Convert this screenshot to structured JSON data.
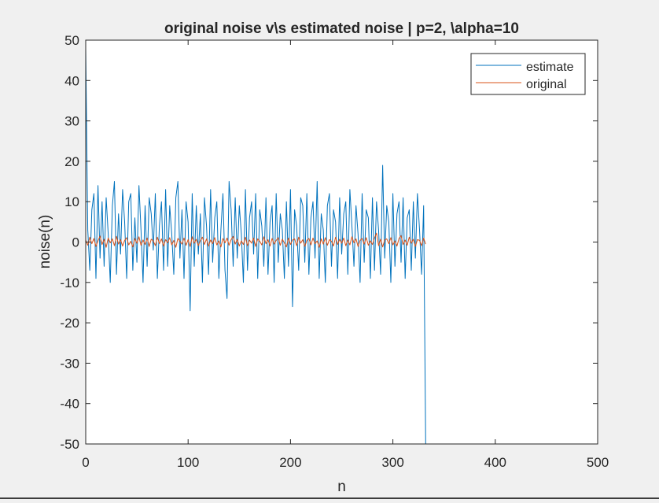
{
  "chart_data": {
    "type": "line",
    "title": "original noise v\\s estimated noise | p=2, \\alpha=10",
    "xlabel": "n",
    "ylabel": "noise(n)",
    "xlim": [
      0,
      500
    ],
    "ylim": [
      -50,
      50
    ],
    "xticks": [
      0,
      100,
      200,
      300,
      400,
      500
    ],
    "yticks": [
      50,
      40,
      30,
      20,
      10,
      0,
      -10,
      -20,
      -30,
      -40,
      -50
    ],
    "grid": false,
    "legend_position": "top-right",
    "series": [
      {
        "name": "estimate",
        "color": "#0072bd",
        "x_start": 0,
        "x_step": 2,
        "values": [
          48,
          3,
          -7,
          8,
          12,
          -9,
          14,
          -4,
          10,
          -6,
          11,
          2,
          -10,
          9,
          15,
          -8,
          7,
          -3,
          13,
          5,
          -9,
          10,
          12,
          -7,
          6,
          -5,
          14,
          3,
          -10,
          9,
          -6,
          11,
          7,
          -2,
          12,
          -9,
          4,
          10,
          -7,
          13,
          -6,
          9,
          2,
          -8,
          11,
          15,
          -4,
          8,
          -9,
          10,
          5,
          -17,
          12,
          -6,
          9,
          -3,
          7,
          -10,
          11,
          4,
          -8,
          13,
          -5,
          6,
          10,
          -9,
          3,
          12,
          -7,
          -14,
          15,
          8,
          -6,
          11,
          -4,
          9,
          2,
          -10,
          13,
          -7,
          6,
          10,
          -3,
          12,
          -9,
          8,
          4,
          -6,
          11,
          -8,
          5,
          9,
          -10,
          12,
          -5,
          7,
          3,
          -9,
          10,
          -6,
          13,
          -16,
          8,
          4,
          -7,
          11,
          9,
          -5,
          12,
          -8,
          6,
          10,
          -4,
          15,
          -9,
          7,
          3,
          -10,
          9,
          12,
          -6,
          8,
          5,
          -9,
          11,
          -3,
          7,
          10,
          -8,
          13,
          4,
          -6,
          9,
          2,
          -10,
          12,
          -5,
          8,
          6,
          -9,
          11,
          -7,
          10,
          3,
          -8,
          19,
          -4,
          9,
          5,
          -10,
          12,
          -6,
          7,
          10,
          -5,
          11,
          -9,
          6,
          8,
          -7,
          10,
          -4,
          12,
          3,
          -8,
          9,
          -50
        ]
      },
      {
        "name": "original",
        "color": "#d95319",
        "x_start": 0,
        "x_step": 2,
        "values": [
          0.5,
          -0.8,
          1.2,
          -0.4,
          0.9,
          -1.1,
          0.3,
          1.5,
          -0.6,
          0.7,
          -1.3,
          1.0,
          -0.2,
          0.8,
          -0.9,
          1.4,
          -0.5,
          0.6,
          -1.0,
          0.4,
          1.1,
          -0.7,
          0.2,
          -1.2,
          0.9,
          -0.3,
          1.3,
          -0.8,
          0.5,
          -0.6,
          1.0,
          -1.1,
          0.7,
          0.3,
          -0.9,
          1.2,
          -0.4,
          0.8,
          -1.0,
          0.6,
          -0.2,
          1.1,
          -0.7,
          0.4,
          -1.3,
          0.9,
          0.2,
          -0.5,
          1.0,
          -0.8,
          0.6,
          -1.1,
          1.3,
          -0.3,
          0.7,
          -0.9,
          0.4,
          1.2,
          -0.6,
          0.8,
          -1.0,
          0.5,
          -0.4,
          1.1,
          -0.7,
          0.3,
          -1.2,
          0.9,
          -0.2,
          1.0,
          -0.8,
          0.6,
          1.4,
          -0.5,
          0.7,
          -1.0,
          0.3,
          -0.6,
          1.2,
          -0.9,
          0.5,
          -0.3,
          1.0,
          -1.1,
          0.8,
          0.2,
          -0.7,
          1.3,
          -0.4,
          0.6,
          -1.0,
          0.9,
          -0.5,
          0.4,
          1.1,
          -0.8,
          0.7,
          -0.2,
          -1.2,
          1.0,
          -0.6,
          0.5,
          0.8,
          -0.9,
          1.2,
          -0.3,
          0.6,
          -1.1,
          0.4,
          0.9,
          -0.7,
          1.0,
          -0.4,
          0.3,
          -1.3,
          0.8,
          -0.5,
          1.1,
          -0.8,
          0.6,
          0.2,
          -1.0,
          1.2,
          -0.6,
          0.7,
          -0.3,
          1.0,
          -0.9,
          0.5,
          -0.7,
          1.3,
          -0.2,
          0.8,
          -1.1,
          0.4,
          0.9,
          -0.5,
          1.1,
          -0.8,
          0.3,
          -0.6,
          1.0,
          2.2,
          -0.9,
          0.7,
          -1.2,
          0.5,
          0.8,
          -0.4,
          1.1,
          -0.7,
          0.3,
          -1.0,
          0.9,
          1.6,
          -0.6,
          0.5,
          -0.8,
          1.2,
          -0.3,
          0.7,
          -1.1,
          0.6,
          0.4,
          -0.9,
          1.0,
          -0.5
        ]
      }
    ]
  }
}
